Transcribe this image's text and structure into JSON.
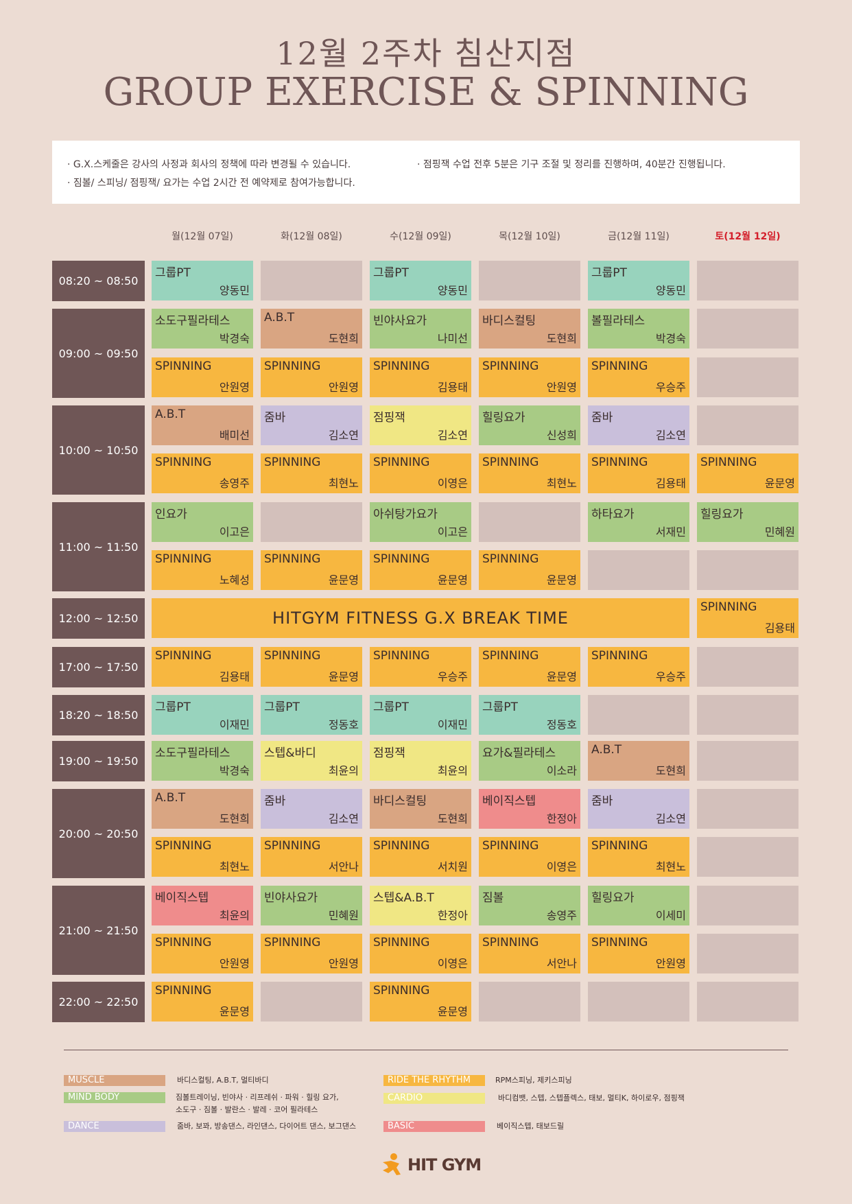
{
  "header": {
    "title": "12월 2주차 침산지점",
    "subtitle": "GROUP EXERCISE & SPINNING"
  },
  "notes": [
    "· G.X.스케줄은 강사의 사정과 회사의 정책에 따라 변경될 수 있습니다.",
    "· 점핑잭 수업 전후 5분은 기구 조절 및 정리를 진행하며, 40분간 진행됩니다.",
    "· 짐볼/ 스피닝/ 점핑잭/ 요가는 수업 2시간 전 예약제로 참여가능합니다."
  ],
  "days": [
    "월(12월 07일)",
    "화(12월 08일)",
    "수(12월 09일)",
    "목(12월 10일)",
    "금(12월 11일)",
    "토(12월 12일)"
  ],
  "times": [
    "08:20 ~ 08:50",
    "09:00 ~ 09:50",
    "10:00 ~ 10:50",
    "11:00 ~ 11:50",
    "12:00 ~ 12:50",
    "17:00 ~ 17:50",
    "18:20 ~ 18:50",
    "19:00 ~ 19:50",
    "20:00 ~ 20:50",
    "21:00 ~ 21:50",
    "22:00 ~ 22:50"
  ],
  "break_label": "HITGYM FITNESS G.X BREAK TIME",
  "schedule": [
    [
      [
        "pt",
        "그룹PT",
        "양동민"
      ],
      [
        "empty",
        "",
        ""
      ],
      [
        "pt",
        "그룹PT",
        "양동민"
      ],
      [
        "empty",
        "",
        ""
      ],
      [
        "pt",
        "그룹PT",
        "양동민"
      ],
      [
        "empty",
        "",
        ""
      ]
    ],
    [
      [
        "mind",
        "소도구필라테스",
        "박경숙"
      ],
      [
        "muscle",
        "A.B.T",
        "도현희"
      ],
      [
        "mind",
        "빈야사요가",
        "나미선"
      ],
      [
        "muscle",
        "바디스컬팅",
        "도현희"
      ],
      [
        "mind",
        "볼필라테스",
        "박경숙"
      ],
      [
        "empty",
        "",
        ""
      ]
    ],
    [
      [
        "spin",
        "SPINNING",
        "안원영"
      ],
      [
        "spin",
        "SPINNING",
        "안원영"
      ],
      [
        "spin",
        "SPINNING",
        "김용태"
      ],
      [
        "spin",
        "SPINNING",
        "안원영"
      ],
      [
        "spin",
        "SPINNING",
        "우승주"
      ],
      [
        "empty",
        "",
        ""
      ]
    ],
    [
      [
        "muscle",
        "A.B.T",
        "배미선"
      ],
      [
        "dance",
        "줌바",
        "김소연"
      ],
      [
        "cardio",
        "점핑잭",
        "김소연"
      ],
      [
        "mind",
        "힐링요가",
        "신성희"
      ],
      [
        "dance",
        "줌바",
        "김소연"
      ],
      [
        "empty",
        "",
        ""
      ]
    ],
    [
      [
        "spin",
        "SPINNING",
        "송영주"
      ],
      [
        "spin",
        "SPINNING",
        "최현노"
      ],
      [
        "spin",
        "SPINNING",
        "이영은"
      ],
      [
        "spin",
        "SPINNING",
        "최현노"
      ],
      [
        "spin",
        "SPINNING",
        "김용태"
      ],
      [
        "spin",
        "SPINNING",
        "윤문영"
      ]
    ],
    [
      [
        "mind",
        "인요가",
        "이고은"
      ],
      [
        "empty",
        "",
        ""
      ],
      [
        "mind",
        "아쉬탕가요가",
        "이고은"
      ],
      [
        "empty",
        "",
        ""
      ],
      [
        "mind",
        "하타요가",
        "서재민"
      ],
      [
        "mind",
        "힐링요가",
        "민혜원"
      ]
    ],
    [
      [
        "spin",
        "SPINNING",
        "노혜성"
      ],
      [
        "spin",
        "SPINNING",
        "윤문영"
      ],
      [
        "spin",
        "SPINNING",
        "윤문영"
      ],
      [
        "spin",
        "SPINNING",
        "윤문영"
      ],
      [
        "empty",
        "",
        ""
      ],
      [
        "empty",
        "",
        ""
      ]
    ],
    [
      [
        "spin",
        "SPINNING",
        "김용태"
      ]
    ],
    [
      [
        "spin",
        "SPINNING",
        "김용태"
      ],
      [
        "spin",
        "SPINNING",
        "윤문영"
      ],
      [
        "spin",
        "SPINNING",
        "우승주"
      ],
      [
        "spin",
        "SPINNING",
        "윤문영"
      ],
      [
        "spin",
        "SPINNING",
        "우승주"
      ],
      [
        "empty",
        "",
        ""
      ]
    ],
    [
      [
        "pt",
        "그룹PT",
        "이재민"
      ],
      [
        "pt",
        "그룹PT",
        "정동호"
      ],
      [
        "pt",
        "그룹PT",
        "이재민"
      ],
      [
        "pt",
        "그룹PT",
        "정동호"
      ],
      [
        "empty",
        "",
        ""
      ],
      [
        "empty",
        "",
        ""
      ]
    ],
    [
      [
        "mind",
        "소도구필라테스",
        "박경숙"
      ],
      [
        "cardio",
        "스텝&바디",
        "최윤의"
      ],
      [
        "cardio",
        "점핑잭",
        "최윤의"
      ],
      [
        "mind",
        "요가&필라테스",
        "이소라"
      ],
      [
        "muscle",
        "A.B.T",
        "도현희"
      ],
      [
        "empty",
        "",
        ""
      ]
    ],
    [
      [
        "muscle",
        "A.B.T",
        "도현희"
      ],
      [
        "dance",
        "줌바",
        "김소연"
      ],
      [
        "muscle",
        "바디스컬팅",
        "도현희"
      ],
      [
        "basic",
        "베이직스텝",
        "한정아"
      ],
      [
        "dance",
        "줌바",
        "김소연"
      ],
      [
        "empty",
        "",
        ""
      ]
    ],
    [
      [
        "spin",
        "SPINNING",
        "최현노"
      ],
      [
        "spin",
        "SPINNING",
        "서안나"
      ],
      [
        "spin",
        "SPINNING",
        "서치원"
      ],
      [
        "spin",
        "SPINNING",
        "이영은"
      ],
      [
        "spin",
        "SPINNING",
        "최현노"
      ],
      [
        "empty",
        "",
        ""
      ]
    ],
    [
      [
        "basic",
        "베이직스텝",
        "최윤의"
      ],
      [
        "mind",
        "빈야사요가",
        "민혜원"
      ],
      [
        "cardio",
        "스텝&A.B.T",
        "한정아"
      ],
      [
        "mind",
        "짐볼",
        "송영주"
      ],
      [
        "mind",
        "힐링요가",
        "이세미"
      ],
      [
        "empty",
        "",
        ""
      ]
    ],
    [
      [
        "spin",
        "SPINNING",
        "안원영"
      ],
      [
        "spin",
        "SPINNING",
        "안원영"
      ],
      [
        "spin",
        "SPINNING",
        "이영은"
      ],
      [
        "spin",
        "SPINNING",
        "서안나"
      ],
      [
        "spin",
        "SPINNING",
        "안원영"
      ],
      [
        "empty",
        "",
        ""
      ]
    ],
    [
      [
        "spin",
        "SPINNING",
        "윤문영"
      ],
      [
        "empty",
        "",
        ""
      ],
      [
        "spin",
        "SPINNING",
        "윤문영"
      ],
      [
        "empty",
        "",
        ""
      ],
      [
        "empty",
        "",
        ""
      ],
      [
        "empty",
        "",
        ""
      ]
    ]
  ],
  "legend": [
    {
      "label": "MUSCLE",
      "color": "#d9a582",
      "desc": "바디스컬팅, A.B.T, 멀티바디"
    },
    {
      "label": "MIND BODY",
      "color": "#a8cb85",
      "desc": "짐볼트레이닝, 빈야사 · 리프레쉬 · 파워 · 힐링 요가,",
      "desc2": "소도구 · 짐볼 · 발란스 · 발레 · 코어 필라테스"
    },
    {
      "label": "DANCE",
      "color": "#c9bfdb",
      "desc": "줌바, 보꽈, 방송댄스, 라인댄스, 다이어트 댄스, 보그댄스"
    },
    {
      "label": "RIDE THE RHYTHM",
      "color": "#f7b740",
      "desc": "RPM스피닝, 제키스피닝"
    },
    {
      "label": "CARDIO",
      "color": "#f0e784",
      "desc": "바디컴뱃, 스텝, 스텝플렉스, 태보, 멀티K, 하이로우, 점핑잭"
    },
    {
      "label": "BASIC",
      "color": "#ef8c8c",
      "desc": "베이직스텝, 태보드릴"
    }
  ],
  "logo": {
    "text": "HIT GYM",
    "icon": "runner-icon"
  }
}
